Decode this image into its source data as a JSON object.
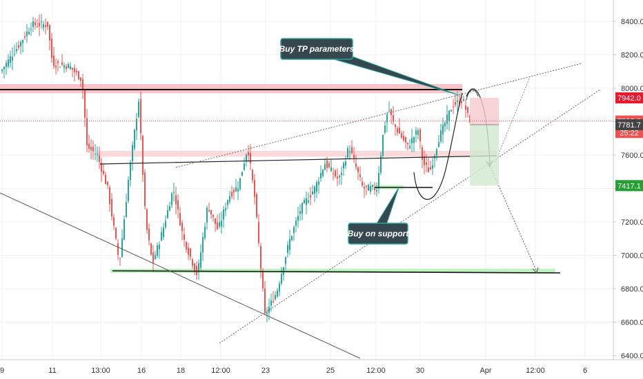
{
  "chart_data": {
    "type": "candlestick",
    "y_ticks": [
      8400,
      8200,
      8000,
      7800,
      7600,
      7400,
      7200,
      7000,
      6800,
      6600,
      6400
    ],
    "y_tick_labels": [
      "8400.0",
      "8200.0",
      "8000.0",
      "7800.0",
      "7600.0",
      "7400.0",
      "7200.0",
      "7000.0",
      "6800.0",
      "6600.0",
      "6400.0"
    ],
    "ylim": [
      6370,
      8510
    ],
    "x_tick_labels": [
      "9",
      "11",
      "13:00",
      "16",
      "18",
      "12:00",
      "23",
      "25",
      "12:00",
      "30",
      "Apr",
      "12:00",
      "6"
    ],
    "price_badges": [
      {
        "label": "7942.0",
        "value": 7942,
        "color": "#e8192c"
      },
      {
        "label": "7803.6",
        "value": 7803.6,
        "color": "#ef5350"
      },
      {
        "label": "25:22",
        "value": 7735,
        "color": "#ef5350"
      },
      {
        "label": "7781.7",
        "value": 7781.7,
        "color": "#444444"
      },
      {
        "label": "7417.1",
        "value": 7417.1,
        "color": "#26a034"
      }
    ],
    "zones": [
      {
        "name": "resistance-zone",
        "from": 7970,
        "to": 8025,
        "color": "#f8b9bd"
      },
      {
        "name": "mid-zone",
        "from": 7590,
        "to": 7625,
        "color": "#fbd4d6"
      },
      {
        "name": "support-zone",
        "from": 6895,
        "to": 6920,
        "color": "#b6f0b6"
      },
      {
        "name": "small-support-zone",
        "from": 7395,
        "to": 7420,
        "color": "#b6f0b6"
      }
    ],
    "position": {
      "entry": 7781.7,
      "stop": 7942.0,
      "target": 7417.1
    },
    "annotations": [
      "Buy TP parameters",
      "Buy on support"
    ],
    "colors": {
      "up": "#26a69a",
      "down": "#ef5350"
    }
  }
}
